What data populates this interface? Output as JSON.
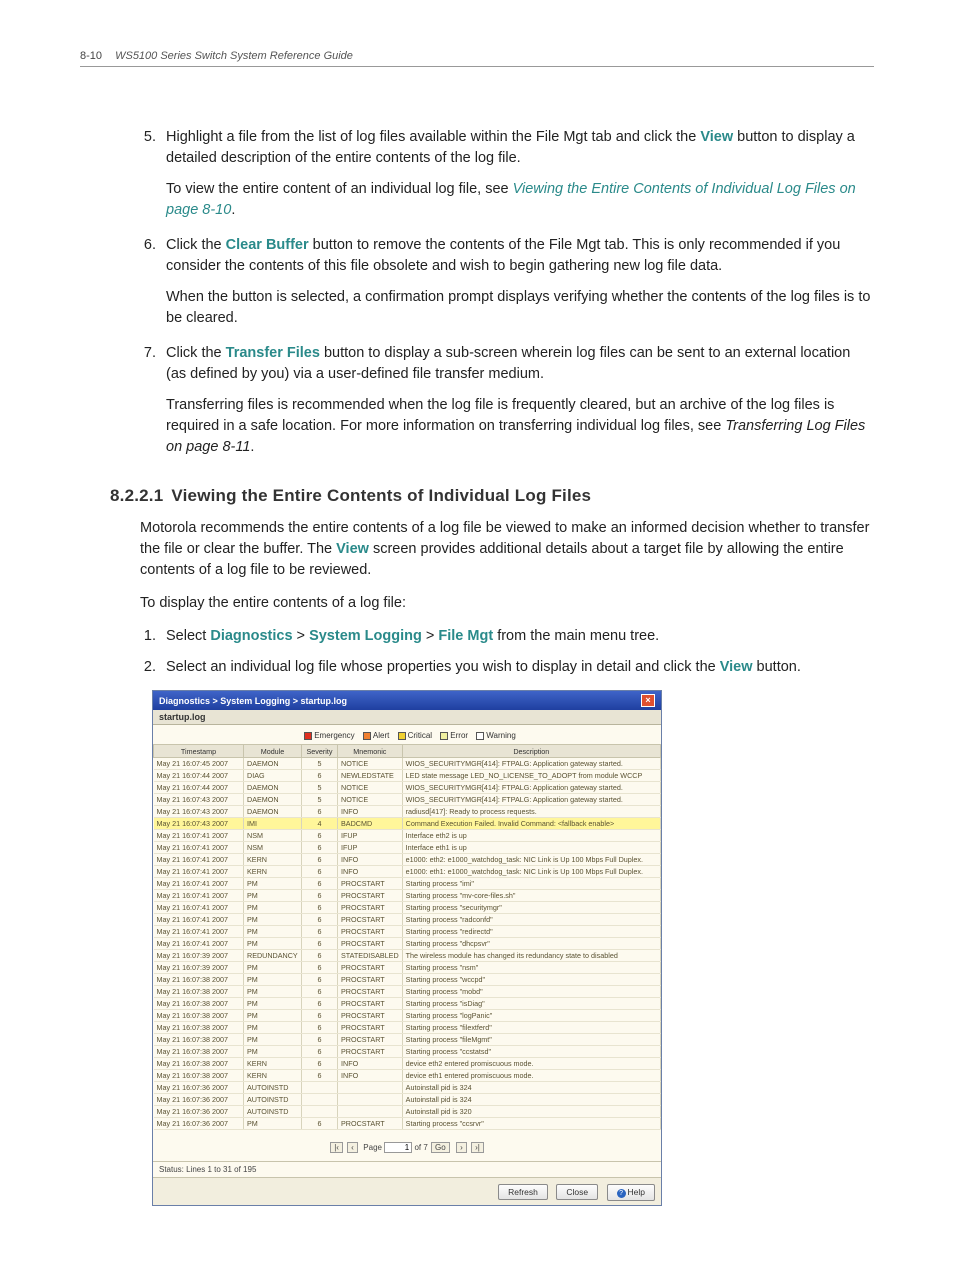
{
  "header": {
    "page": "8-10",
    "title": "WS5100 Series Switch System Reference Guide"
  },
  "steps": {
    "s5a": "Highlight a file from the list of log files available within the File Mgt tab and click the ",
    "s5_view": "View",
    "s5b": " button to display a detailed description of the entire contents of the log file.",
    "s5c": "To view the entire content of an individual log file, see ",
    "s5_link": "Viewing the Entire Contents of Individual Log Files on page 8-10",
    "s5d": ".",
    "s6a": "Click the ",
    "s6_clear": "Clear Buffer",
    "s6b": " button to remove the contents of the File Mgt tab. This is only recommended if you consider the contents of this file obsolete and wish to begin gathering new log file data.",
    "s6c": "When the button is selected, a confirmation prompt displays verifying whether the contents of the log files is to be cleared.",
    "s7a": "Click the ",
    "s7_tf": "Transfer Files",
    "s7b": " button to display a sub-screen wherein log files can be sent to an external location (as defined by you) via a user-defined file transfer medium.",
    "s7c": "Transferring files is recommended when the log file is frequently cleared, but an archive of the log files is required in a safe location. For more information on transferring individual log files, see ",
    "s7_it": "Transferring Log Files on page 8-11",
    "s7d": "."
  },
  "sec": {
    "num": "8.2.2.1",
    "title": "Viewing the Entire Contents of Individual Log Files",
    "p1a": "Motorola recommends the entire contents of a log file be viewed to make an informed decision whether to transfer the file or clear the buffer. The ",
    "p1_view": "View",
    "p1b": " screen provides additional details about a target file by allowing the entire contents of a log file to be reviewed.",
    "p2": "To display the entire contents of a log file:",
    "li1a": "Select ",
    "li1_diag": "Diagnostics",
    "li1_gt1": " > ",
    "li1_sl": "System Logging",
    "li1_gt2": " > ",
    "li1_fm": "File Mgt",
    "li1b": " from the main menu tree.",
    "li2a": "Select an individual log file whose properties you wish to display in detail and click the ",
    "li2_view": "View",
    "li2b": " button."
  },
  "win": {
    "title": "Diagnostics > System Logging > startup.log",
    "tab": "startup.log",
    "legend": {
      "emergency": "Emergency",
      "emergency_color": "#e03020",
      "alert": "Alert",
      "alert_color": "#f08030",
      "critical": "Critical",
      "critical_color": "#f0d030",
      "error": "Error",
      "error_color": "#f0f0a0",
      "warning": "Warning",
      "warning_color": "#ffffff"
    },
    "columns": [
      "Timestamp",
      "Module",
      "Severity",
      "Mnemonic",
      "Description"
    ],
    "rows": [
      [
        "May 21 16:07:45 2007",
        "DAEMON",
        "5",
        "NOTICE",
        "WIOS_SECURITYMGR[414]: FTPALG: Application gateway started."
      ],
      [
        "May 21 16:07:44 2007",
        "DIAG",
        "6",
        "NEWLEDSTATE",
        "LED state message LED_NO_LICENSE_TO_ADOPT from module WCCP"
      ],
      [
        "May 21 16:07:44 2007",
        "DAEMON",
        "5",
        "NOTICE",
        "WIOS_SECURITYMGR[414]: FTPALG: Application gateway started."
      ],
      [
        "May 21 16:07:43 2007",
        "DAEMON",
        "5",
        "NOTICE",
        "WIOS_SECURITYMGR[414]: FTPALG: Application gateway started."
      ],
      [
        "May 21 16:07:43 2007",
        "DAEMON",
        "6",
        "INFO",
        "radiusd[417]: Ready to process requests."
      ],
      [
        "May 21 16:07:43 2007",
        "IMI",
        "4",
        "BADCMD",
        "Command Execution Failed. Invalid Command: <fallback enable>"
      ],
      [
        "May 21 16:07:41 2007",
        "NSM",
        "6",
        "IFUP",
        "Interface eth2 is up"
      ],
      [
        "May 21 16:07:41 2007",
        "NSM",
        "6",
        "IFUP",
        "Interface eth1 is up"
      ],
      [
        "May 21 16:07:41 2007",
        "KERN",
        "6",
        "INFO",
        "e1000: eth2: e1000_watchdog_task: NIC Link is Up 100 Mbps Full Duplex."
      ],
      [
        "May 21 16:07:41 2007",
        "KERN",
        "6",
        "INFO",
        "e1000: eth1: e1000_watchdog_task: NIC Link is Up 100 Mbps Full Duplex."
      ],
      [
        "May 21 16:07:41 2007",
        "PM",
        "6",
        "PROCSTART",
        "Starting process \"imi\""
      ],
      [
        "May 21 16:07:41 2007",
        "PM",
        "6",
        "PROCSTART",
        "Starting process \"mv-core-files.sh\""
      ],
      [
        "May 21 16:07:41 2007",
        "PM",
        "6",
        "PROCSTART",
        "Starting process \"securitymgr\""
      ],
      [
        "May 21 16:07:41 2007",
        "PM",
        "6",
        "PROCSTART",
        "Starting process \"radconfd\""
      ],
      [
        "May 21 16:07:41 2007",
        "PM",
        "6",
        "PROCSTART",
        "Starting process \"redirectd\""
      ],
      [
        "May 21 16:07:41 2007",
        "PM",
        "6",
        "PROCSTART",
        "Starting process \"dhcpsvr\""
      ],
      [
        "May 21 16:07:39 2007",
        "REDUNDANCY",
        "6",
        "STATEDISABLED",
        "The wireless module has changed its redundancy state to disabled"
      ],
      [
        "May 21 16:07:39 2007",
        "PM",
        "6",
        "PROCSTART",
        "Starting process \"nsm\""
      ],
      [
        "May 21 16:07:38 2007",
        "PM",
        "6",
        "PROCSTART",
        "Starting process \"wccpd\""
      ],
      [
        "May 21 16:07:38 2007",
        "PM",
        "6",
        "PROCSTART",
        "Starting process \"mobd\""
      ],
      [
        "May 21 16:07:38 2007",
        "PM",
        "6",
        "PROCSTART",
        "Starting process \"isDiag\""
      ],
      [
        "May 21 16:07:38 2007",
        "PM",
        "6",
        "PROCSTART",
        "Starting process \"logPanic\""
      ],
      [
        "May 21 16:07:38 2007",
        "PM",
        "6",
        "PROCSTART",
        "Starting process \"filextferd\""
      ],
      [
        "May 21 16:07:38 2007",
        "PM",
        "6",
        "PROCSTART",
        "Starting process \"fileMgmt\""
      ],
      [
        "May 21 16:07:38 2007",
        "PM",
        "6",
        "PROCSTART",
        "Starting process \"ccstatsd\""
      ],
      [
        "May 21 16:07:38 2007",
        "KERN",
        "6",
        "INFO",
        "device eth2 entered promiscuous mode."
      ],
      [
        "May 21 16:07:38 2007",
        "KERN",
        "6",
        "INFO",
        "device eth1 entered promiscuous mode."
      ],
      [
        "May 21 16:07:36 2007",
        "AUTOINSTD",
        "",
        "",
        "Autoinstall pid is 324"
      ],
      [
        "May 21 16:07:36 2007",
        "AUTOINSTD",
        "",
        "",
        "Autoinstall pid is 324"
      ],
      [
        "May 21 16:07:36 2007",
        "AUTOINSTD",
        "",
        "",
        "Autoinstall pid is 320"
      ],
      [
        "May 21 16:07:36 2007",
        "PM",
        "6",
        "PROCSTART",
        "Starting process \"ccsrvr\""
      ]
    ],
    "highlight_row": 5,
    "pager": {
      "page": "1",
      "of": "of 7",
      "go": "Go",
      "pagelabel": "Page"
    },
    "status": "Status:   Lines 1 to 31 of 195",
    "buttons": {
      "refresh": "Refresh",
      "close": "Close",
      "help": "Help"
    }
  }
}
